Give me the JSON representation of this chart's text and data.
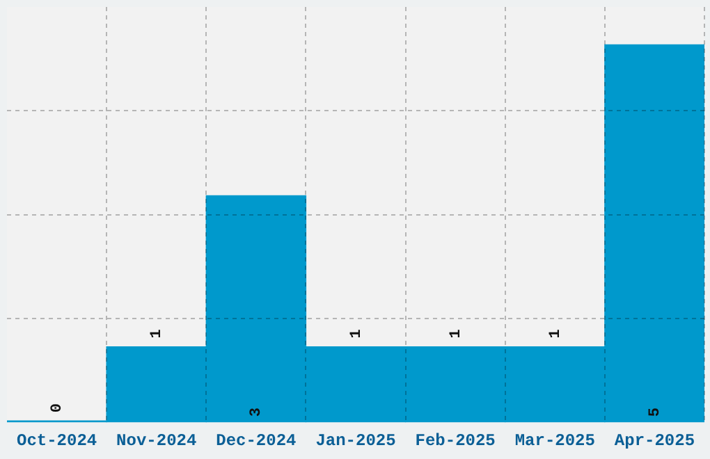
{
  "chart_data": {
    "type": "bar",
    "categories": [
      "Oct-2024",
      "Nov-2024",
      "Dec-2024",
      "Jan-2025",
      "Feb-2025",
      "Mar-2025",
      "Apr-2025"
    ],
    "values": [
      0,
      1,
      3,
      1,
      1,
      1,
      5
    ],
    "color": "#0099cc",
    "ylim": [
      0,
      5.5
    ],
    "yticks": [
      {
        "value": 1.375,
        "label": null
      },
      {
        "value": 2.75,
        "label": null
      },
      {
        "value": 4.125,
        "label": null
      }
    ],
    "grid": true,
    "tick_labels": "x",
    "data_labels": true
  }
}
